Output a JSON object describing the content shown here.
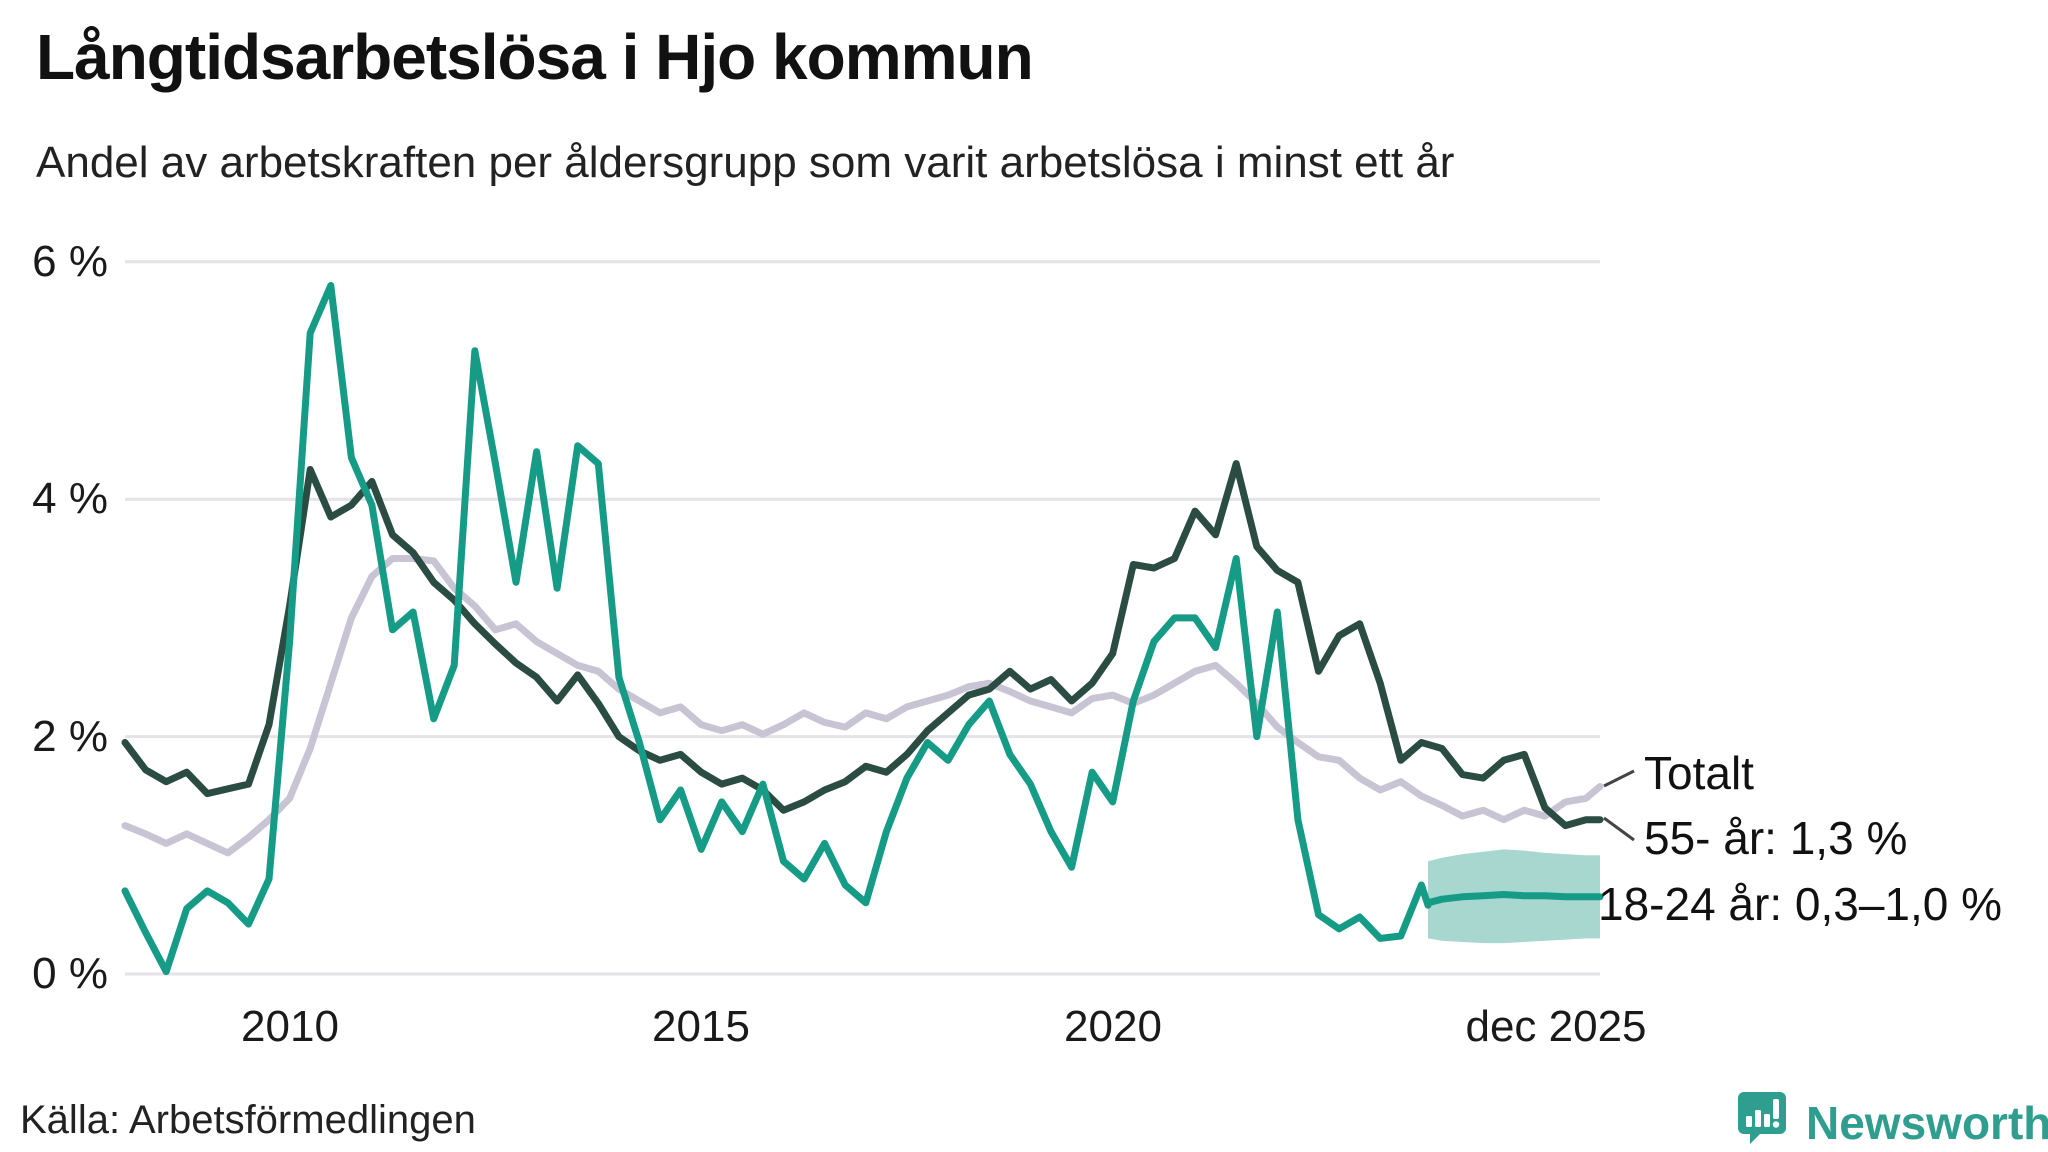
{
  "header": {
    "title": "Långtidsarbetslösa i Hjo kommun",
    "subtitle": "Andel av arbetskraften per åldersgrupp som varit arbetslösa i minst ett år"
  },
  "footer": {
    "source": "Källa: Arbetsförmedlingen",
    "brand": "Newsworthy",
    "brand_icon": "speech-bubble-bar-chart-icon",
    "brand_color": "#2f9e8e"
  },
  "colors": {
    "background": "#ffffff",
    "grid": "#e3e3e8",
    "text": "#1a1a1a",
    "totalt_line": "#c9c4d3",
    "55_line": "#2b4c43",
    "18_24_line": "#169b86",
    "forecast_band": "#a7d7ce",
    "connector": "#444444"
  },
  "chart_data": {
    "type": "line",
    "title": "Långtidsarbetslösa i Hjo kommun",
    "subtitle": "Andel av arbetskraften per åldersgrupp som varit arbetslösa i minst ett år",
    "unit": "%",
    "grid": true,
    "legend_position": "right-edge-annotations",
    "x_axis": {
      "range_years": [
        2008,
        2025.92
      ],
      "ticks": [
        "2010",
        "2015",
        "2020",
        "dec 2025"
      ],
      "tick_years": [
        2010,
        2015,
        2020,
        2025.75
      ]
    },
    "y_axis": {
      "range": [
        0,
        6.3
      ],
      "ticks": [
        "6 %",
        "4 %",
        "2 %",
        "0 %"
      ],
      "tick_values": [
        6,
        4,
        2,
        0
      ]
    },
    "x_quarters": [
      2008,
      2008.25,
      2008.5,
      2008.75,
      2009,
      2009.25,
      2009.5,
      2009.75,
      2010,
      2010.25,
      2010.5,
      2010.75,
      2011,
      2011.25,
      2011.5,
      2011.75,
      2012,
      2012.25,
      2012.5,
      2012.75,
      2013,
      2013.25,
      2013.5,
      2013.75,
      2014,
      2014.25,
      2014.5,
      2014.75,
      2015,
      2015.25,
      2015.5,
      2015.75,
      2016,
      2016.25,
      2016.5,
      2016.75,
      2017,
      2017.25,
      2017.5,
      2017.75,
      2018,
      2018.25,
      2018.5,
      2018.75,
      2019,
      2019.25,
      2019.5,
      2019.75,
      2020,
      2020.25,
      2020.5,
      2020.75,
      2021,
      2021.25,
      2021.5,
      2021.75,
      2022,
      2022.25,
      2022.5,
      2022.75,
      2023,
      2023.25,
      2023.5,
      2023.75,
      2024,
      2024.25,
      2024.5,
      2024.75,
      2025,
      2025.25,
      2025.5,
      2025.75,
      2025.92
    ],
    "series": [
      {
        "name": "Totalt",
        "label": "Totalt",
        "color": "#c9c4d3",
        "x_key": "x_quarters",
        "values": [
          1.25,
          1.18,
          1.1,
          1.18,
          1.1,
          1.02,
          1.15,
          1.3,
          1.48,
          1.9,
          2.45,
          3.0,
          3.35,
          3.5,
          3.5,
          3.48,
          3.25,
          3.1,
          2.9,
          2.95,
          2.8,
          2.7,
          2.6,
          2.55,
          2.4,
          2.3,
          2.2,
          2.25,
          2.1,
          2.05,
          2.1,
          2.02,
          2.1,
          2.2,
          2.12,
          2.08,
          2.2,
          2.15,
          2.25,
          2.3,
          2.35,
          2.42,
          2.45,
          2.38,
          2.3,
          2.25,
          2.2,
          2.32,
          2.35,
          2.28,
          2.35,
          2.45,
          2.55,
          2.6,
          2.45,
          2.28,
          2.08,
          1.95,
          1.83,
          1.8,
          1.65,
          1.55,
          1.62,
          1.5,
          1.42,
          1.33,
          1.38,
          1.3,
          1.38,
          1.33,
          1.45,
          1.48,
          1.58
        ]
      },
      {
        "name": "55- år",
        "label": "55- år: 1,3 %",
        "end_value_text": "1,3 %",
        "color": "#2b4c43",
        "x_key": "x_quarters",
        "values": [
          1.95,
          1.72,
          1.62,
          1.7,
          1.52,
          1.56,
          1.6,
          2.1,
          3.1,
          4.25,
          3.85,
          3.95,
          4.15,
          3.7,
          3.55,
          3.3,
          3.15,
          2.95,
          2.78,
          2.62,
          2.5,
          2.3,
          2.52,
          2.28,
          2.0,
          1.88,
          1.8,
          1.85,
          1.7,
          1.6,
          1.65,
          1.55,
          1.38,
          1.45,
          1.55,
          1.62,
          1.75,
          1.7,
          1.85,
          2.05,
          2.2,
          2.35,
          2.4,
          2.55,
          2.4,
          2.48,
          2.3,
          2.45,
          2.7,
          3.45,
          3.42,
          3.5,
          3.9,
          3.7,
          4.3,
          3.6,
          3.4,
          3.3,
          2.55,
          2.85,
          2.95,
          2.45,
          1.8,
          1.95,
          1.9,
          1.68,
          1.65,
          1.8,
          1.85,
          1.4,
          1.25,
          1.3,
          1.3
        ]
      },
      {
        "name": "18-24 år",
        "label": "18-24 år: 0,3–1,0 %",
        "end_value_text": "0,3–1,0 %",
        "color": "#169b86",
        "x": [
          2008,
          2008.25,
          2008.5,
          2008.75,
          2009,
          2009.25,
          2009.5,
          2009.75,
          2010,
          2010.25,
          2010.5,
          2010.75,
          2011,
          2011.25,
          2011.5,
          2011.75,
          2012,
          2012.25,
          2012.5,
          2012.75,
          2013,
          2013.25,
          2013.5,
          2013.75,
          2014,
          2014.25,
          2014.5,
          2014.75,
          2015,
          2015.25,
          2015.5,
          2015.75,
          2016,
          2016.25,
          2016.5,
          2016.75,
          2017,
          2017.25,
          2017.5,
          2017.75,
          2018,
          2018.25,
          2018.5,
          2018.75,
          2019,
          2019.25,
          2019.5,
          2019.75,
          2020,
          2020.25,
          2020.5,
          2020.75,
          2021,
          2021.25,
          2021.5,
          2021.75,
          2022,
          2022.25,
          2022.5,
          2022.75,
          2023,
          2023.25,
          2023.5,
          2023.75,
          2023.83
        ],
        "values": [
          0.7,
          0.35,
          0.02,
          0.55,
          0.7,
          0.6,
          0.42,
          0.8,
          2.8,
          5.4,
          5.8,
          4.35,
          3.95,
          2.9,
          3.05,
          2.15,
          2.6,
          5.25,
          4.3,
          3.3,
          4.4,
          3.25,
          4.45,
          4.3,
          2.5,
          1.95,
          1.3,
          1.55,
          1.05,
          1.45,
          1.2,
          1.6,
          0.95,
          0.8,
          1.1,
          0.75,
          0.6,
          1.2,
          1.65,
          1.95,
          1.8,
          2.1,
          2.3,
          1.85,
          1.6,
          1.2,
          0.9,
          1.7,
          1.45,
          2.3,
          2.8,
          3.0,
          3.0,
          2.75,
          3.5,
          2.0,
          3.05,
          1.3,
          0.5,
          0.38,
          0.48,
          0.3,
          0.32,
          0.75,
          0.58
        ],
        "forecast": {
          "band_color": "#a7d7ce",
          "x": [
            2023.83,
            2024,
            2024.25,
            2024.5,
            2024.75,
            2025,
            2025.25,
            2025.5,
            2025.75,
            2025.92
          ],
          "median": [
            0.6,
            0.63,
            0.65,
            0.66,
            0.67,
            0.66,
            0.66,
            0.65,
            0.65,
            0.65
          ],
          "low": [
            0.3,
            0.28,
            0.27,
            0.26,
            0.26,
            0.27,
            0.28,
            0.29,
            0.3,
            0.3
          ],
          "high": [
            0.95,
            0.98,
            1.01,
            1.03,
            1.05,
            1.04,
            1.02,
            1.01,
            1.0,
            1.0
          ]
        }
      }
    ],
    "annotations": [
      {
        "text": "Totalt",
        "series": "Totalt"
      },
      {
        "text": "55- år: 1,3 %",
        "series": "55- år"
      },
      {
        "text": "18-24 år: 0,3–1,0 %",
        "series": "18-24 år"
      }
    ]
  }
}
